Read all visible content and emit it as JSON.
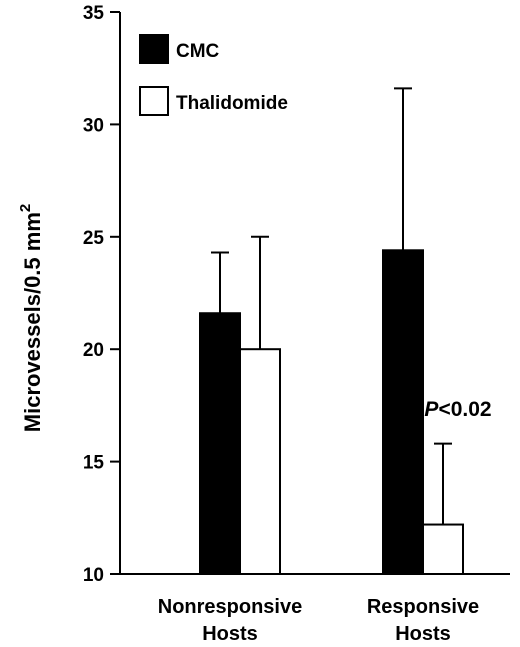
{
  "chart_data": {
    "type": "bar",
    "title": "",
    "xlabel": "",
    "ylabel": "Microvessels/0.5 mm",
    "ylabel_superscript": "2",
    "ylim": [
      10,
      35
    ],
    "yticks": [
      10,
      15,
      20,
      25,
      30,
      35
    ],
    "categories": [
      [
        "Nonresponsive",
        "Hosts"
      ],
      [
        "Responsive",
        "Hosts"
      ]
    ],
    "series": [
      {
        "name": "CMC",
        "color": "#000000",
        "values": [
          21.6,
          24.4
        ],
        "error": [
          2.7,
          7.2
        ]
      },
      {
        "name": "Thalidomide",
        "color": "#ffffff",
        "values": [
          20.0,
          12.2
        ],
        "error": [
          5.0,
          3.6
        ]
      }
    ],
    "legend": {
      "placement": "top-left"
    },
    "annotations": [
      {
        "italic": "P",
        "text": "<0.02",
        "category_index": 1
      }
    ],
    "grid": false,
    "error_bars": "upper"
  }
}
